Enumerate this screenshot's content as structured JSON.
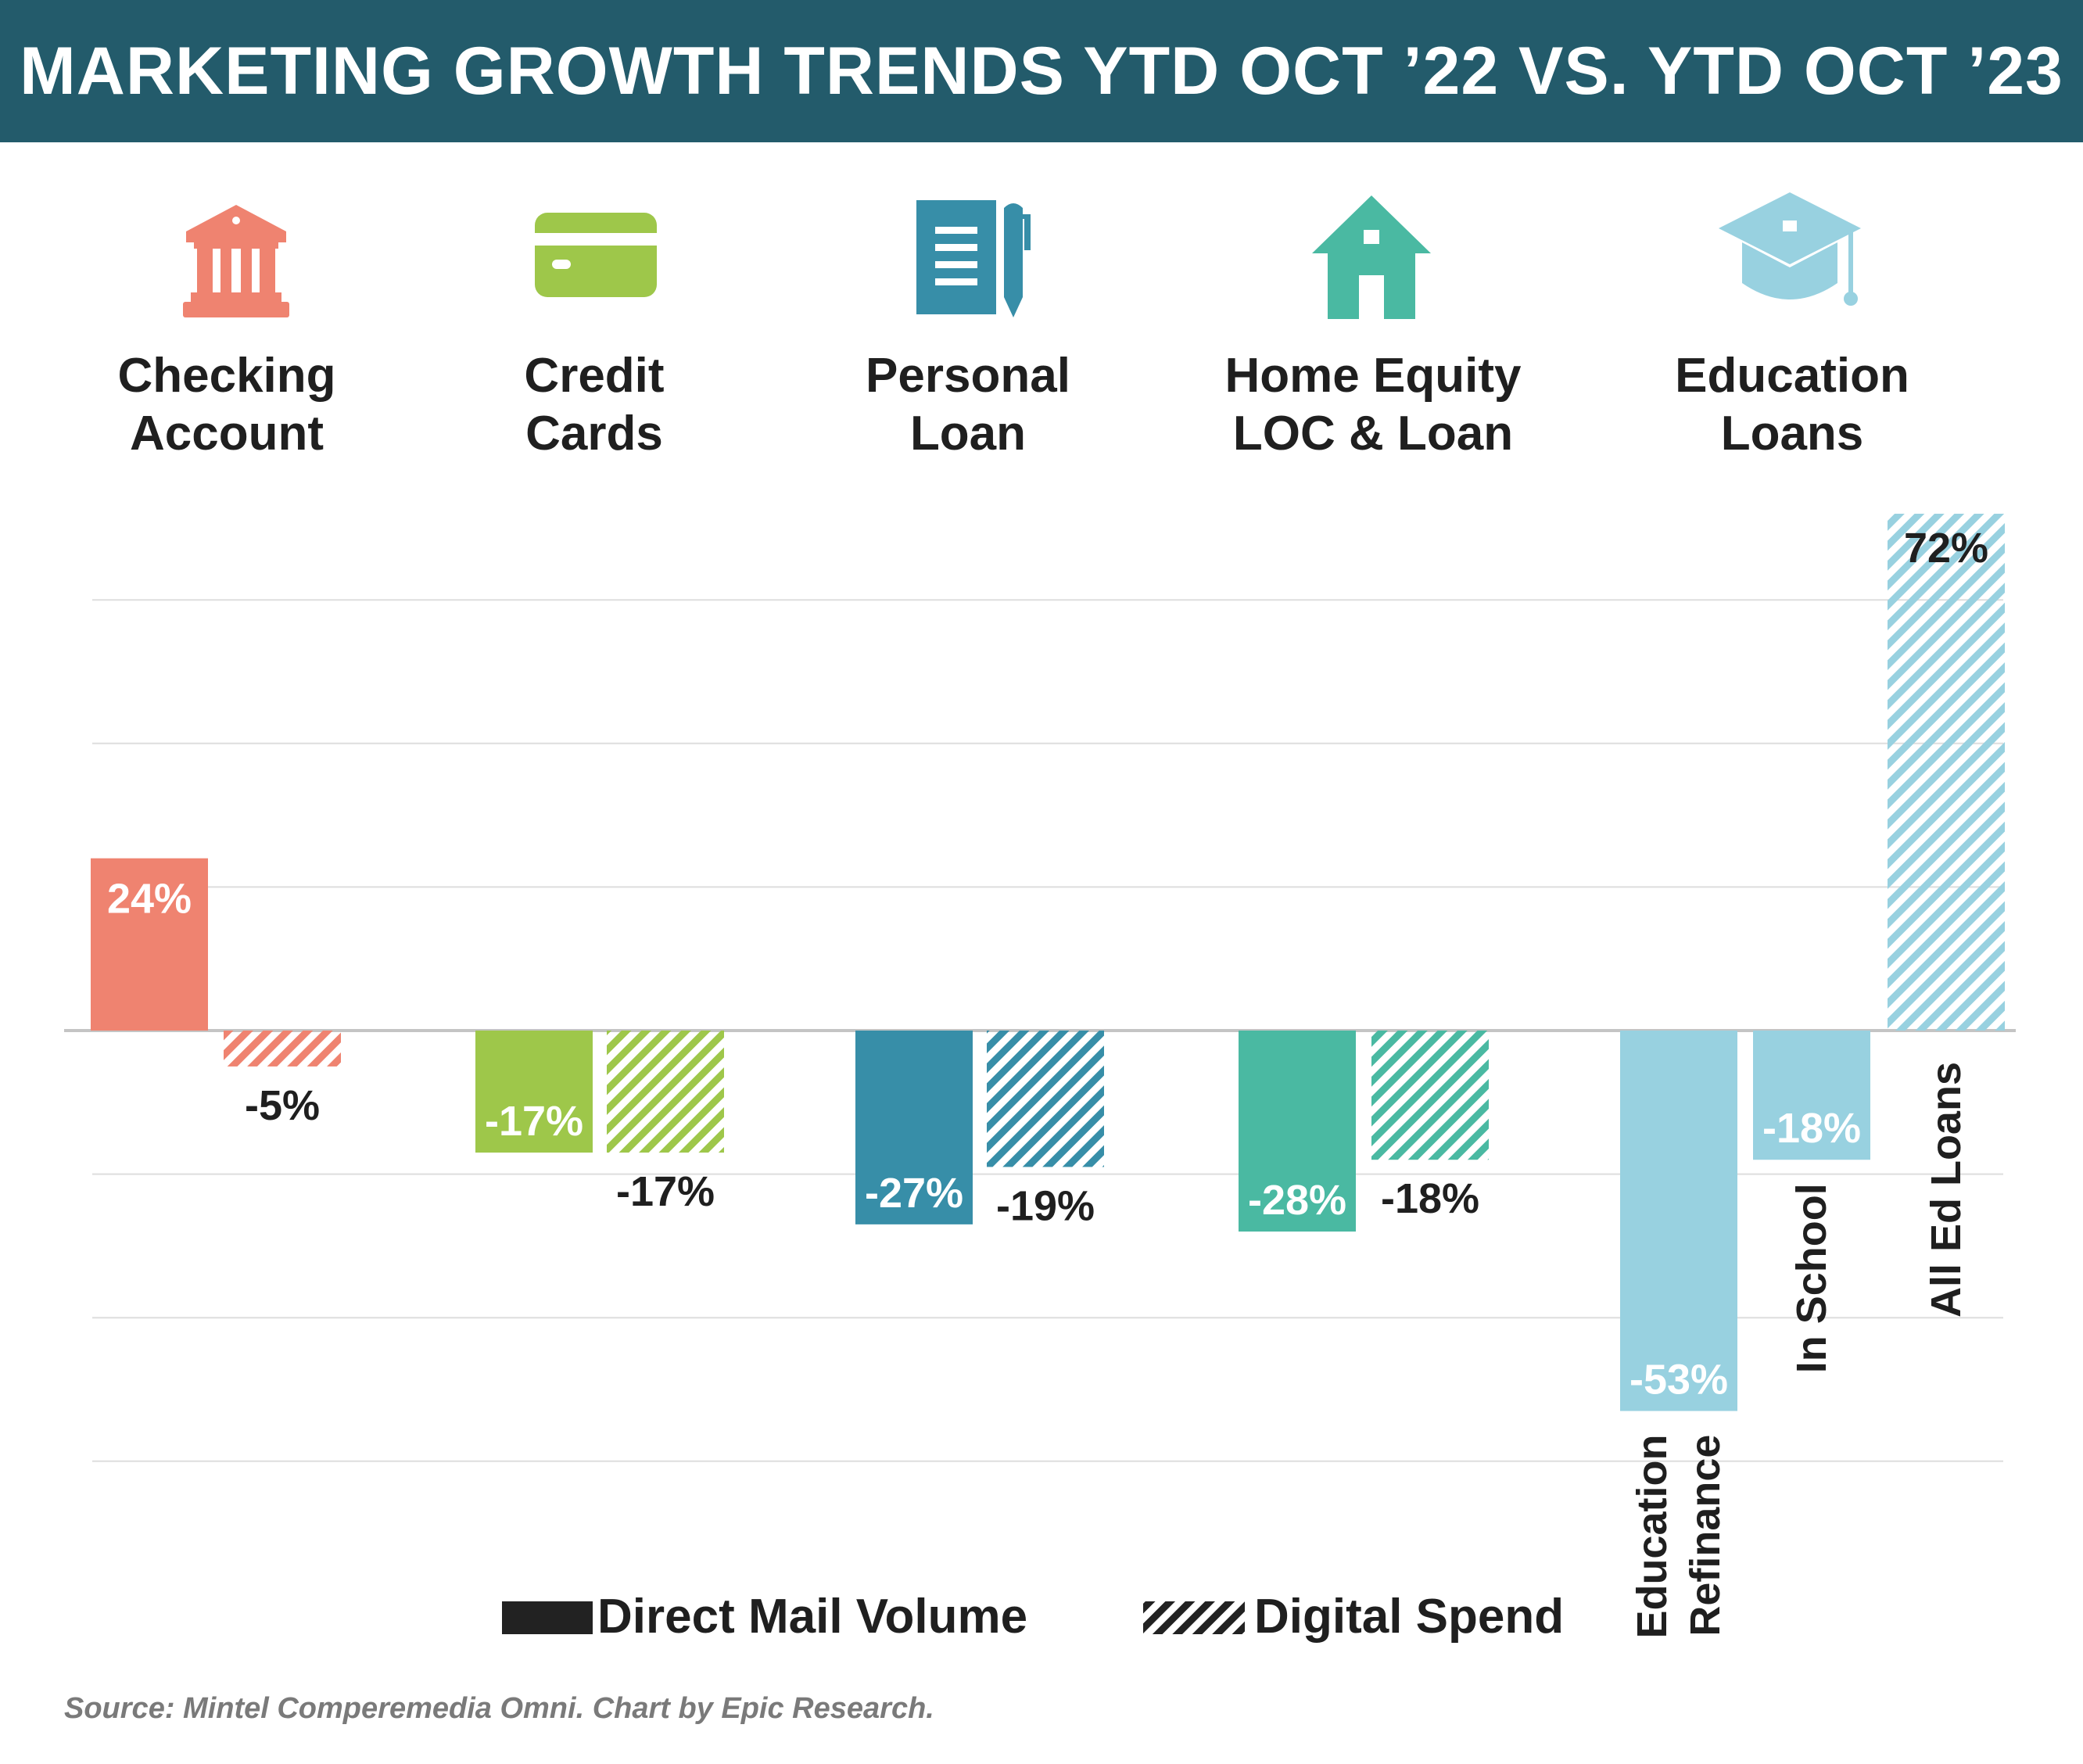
{
  "title": "MARKETING GROWTH TRENDS YTD OCT ’22 VS. YTD OCT ’23",
  "categories": [
    {
      "label_line1": "Checking",
      "label_line2": "Account",
      "icon": "bank-icon",
      "color": "#ef8370"
    },
    {
      "label_line1": "Credit",
      "label_line2": "Cards",
      "icon": "credit-card-icon",
      "color": "#9ec74a"
    },
    {
      "label_line1": "Personal",
      "label_line2": "Loan",
      "icon": "document-pen-icon",
      "color": "#378ea8"
    },
    {
      "label_line1": "Home Equity",
      "label_line2": "LOC & Loan",
      "icon": "house-icon",
      "color": "#4ab9a2"
    },
    {
      "label_line1": "Education",
      "label_line2": "Loans",
      "icon": "graduation-cap-icon",
      "color": "#98d1e0"
    }
  ],
  "chart_data": {
    "type": "bar",
    "ylim": [
      -60,
      80
    ],
    "gridlines": [
      60,
      40,
      20,
      0,
      -20,
      -40,
      -60
    ],
    "series": [
      {
        "name": "Direct Mail Volume",
        "pattern": "solid"
      },
      {
        "name": "Digital Spend",
        "pattern": "hatched"
      }
    ],
    "bars": [
      {
        "category": "Checking Account",
        "series": "Direct Mail Volume",
        "value": 24,
        "label": "24%",
        "color": "#ef8370"
      },
      {
        "category": "Checking Account",
        "series": "Digital Spend",
        "value": -5,
        "label": "-5%",
        "color": "#ef8370"
      },
      {
        "category": "Credit Cards",
        "series": "Direct Mail Volume",
        "value": -17,
        "label": "-17%",
        "color": "#9ec74a"
      },
      {
        "category": "Credit Cards",
        "series": "Digital Spend",
        "value": -17,
        "label": "-17%",
        "color": "#9ec74a"
      },
      {
        "category": "Personal Loan",
        "series": "Direct Mail Volume",
        "value": -27,
        "label": "-27%",
        "color": "#378ea8"
      },
      {
        "category": "Personal Loan",
        "series": "Digital Spend",
        "value": -19,
        "label": "-19%",
        "color": "#378ea8"
      },
      {
        "category": "Home Equity LOC & Loan",
        "series": "Direct Mail Volume",
        "value": -28,
        "label": "-28%",
        "color": "#4ab9a2"
      },
      {
        "category": "Home Equity LOC & Loan",
        "series": "Digital Spend",
        "value": -18,
        "label": "-18%",
        "color": "#4ab9a2"
      },
      {
        "category": "Education Loans",
        "series": "Direct Mail Volume",
        "value": -53,
        "label": "-53%",
        "color": "#98d1e0",
        "sublabel": [
          "Education",
          "Refinance"
        ]
      },
      {
        "category": "Education Loans",
        "series": "Direct Mail Volume",
        "value": -18,
        "label": "-18%",
        "color": "#98d1e0",
        "sublabel": [
          "In School"
        ]
      },
      {
        "category": "Education Loans",
        "series": "Digital Spend",
        "value": 72,
        "label": "72%",
        "color": "#98d1e0",
        "sublabel": [
          "All Ed Loans"
        ]
      }
    ]
  },
  "legend": {
    "direct_mail": "Direct Mail Volume",
    "digital": "Digital Spend"
  },
  "source": "Source: Mintel Comperemedia Omni. Chart by Epic Research."
}
